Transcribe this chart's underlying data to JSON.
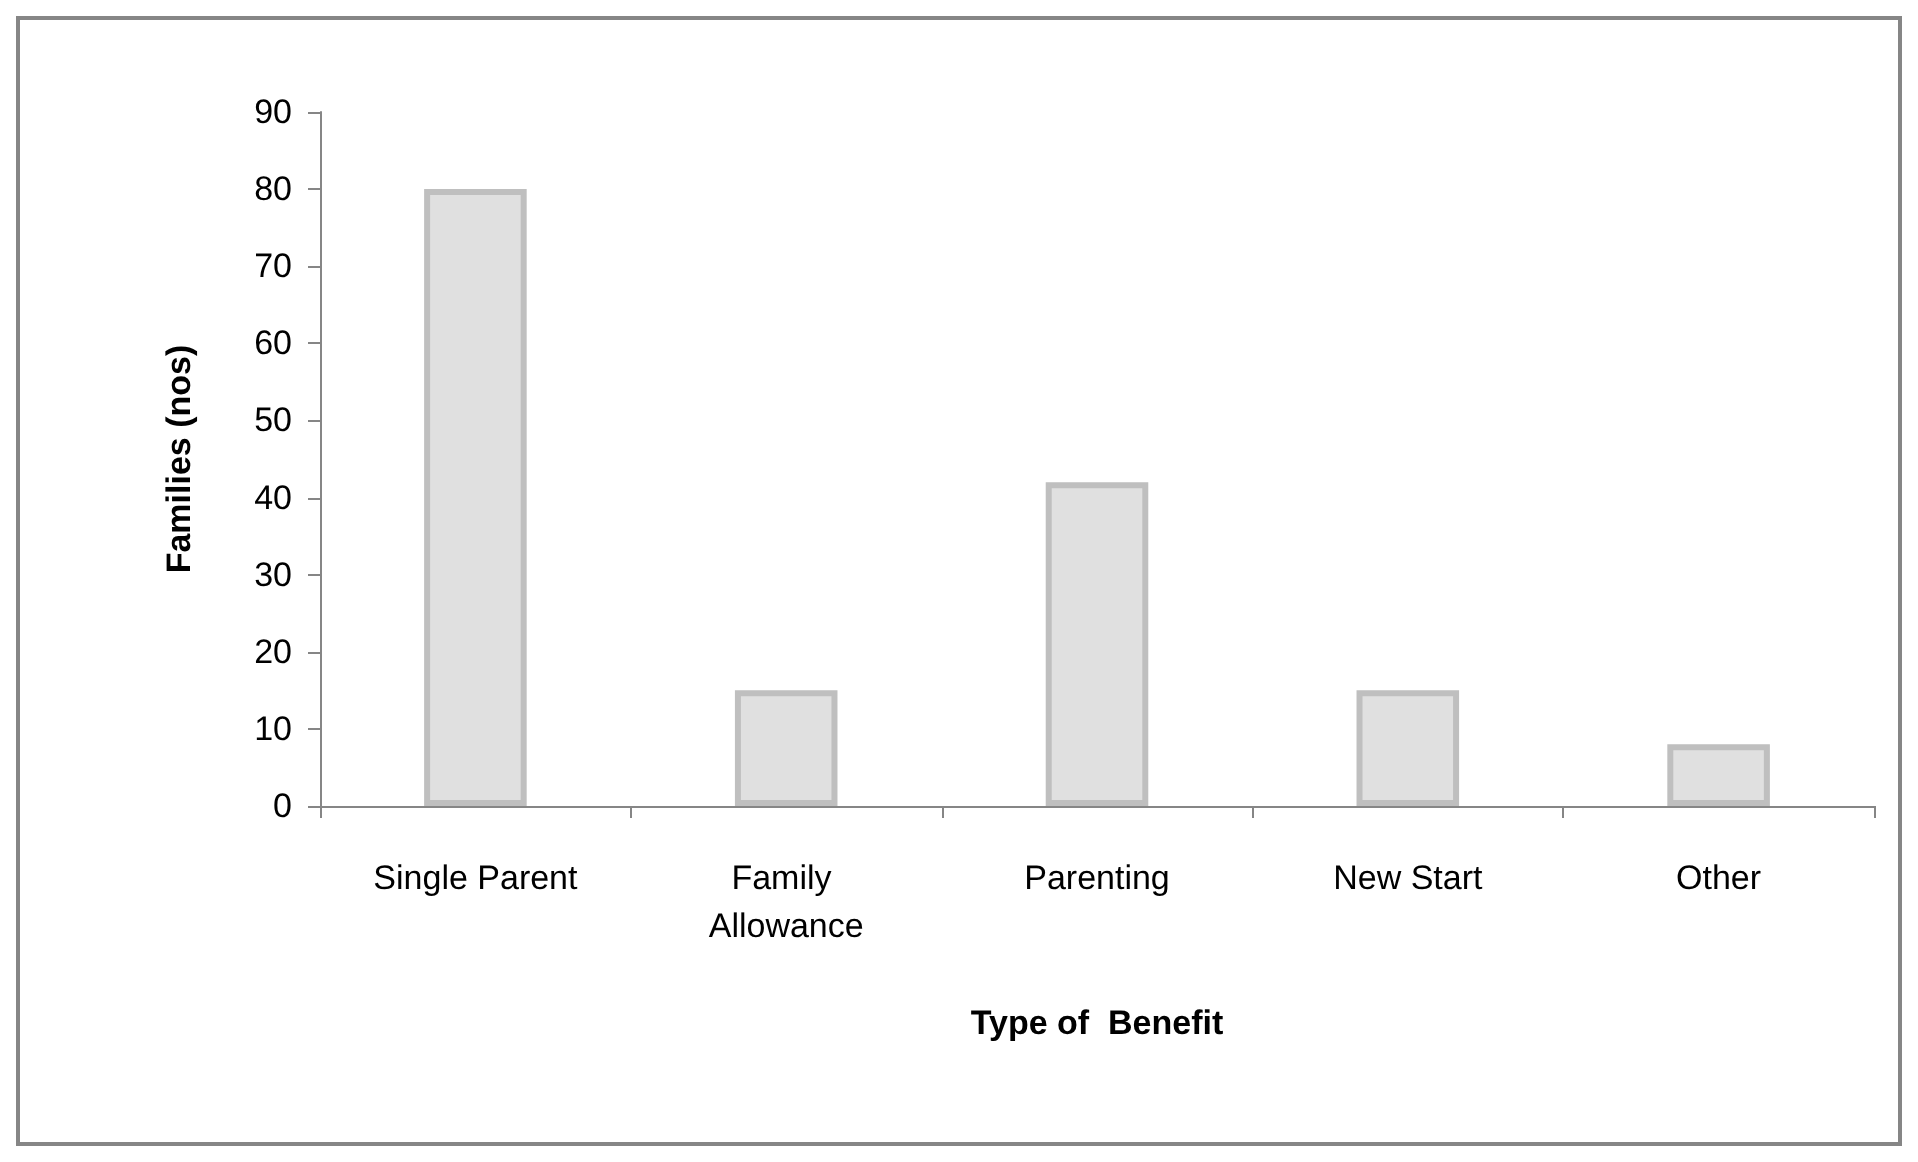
{
  "chart_data": {
    "type": "bar",
    "xlabel": "Type of  Benefit",
    "ylabel": "Families (nos)",
    "categories": [
      "Single Parent",
      "Family Allowance",
      "Parenting",
      "New Start",
      "Other"
    ],
    "values": [
      80,
      15,
      42,
      15,
      8
    ],
    "color": "#e0e0e0",
    "ylim": [
      0,
      90
    ],
    "yticks": [
      0,
      10,
      20,
      30,
      40,
      50,
      60,
      70,
      80,
      90
    ]
  }
}
